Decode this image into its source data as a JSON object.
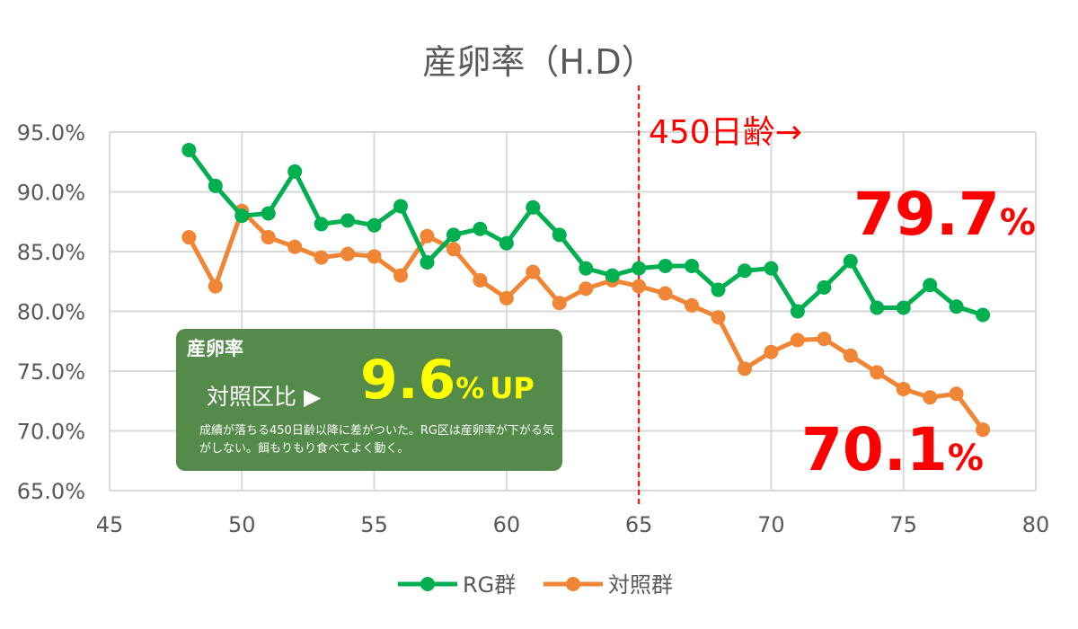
{
  "chart_data": {
    "type": "line",
    "title": "産卵率（H.D）",
    "xlabel": "",
    "ylabel": "",
    "xlim": [
      45,
      80
    ],
    "ylim": [
      65,
      95
    ],
    "x_ticks": [
      "45",
      "50",
      "55",
      "60",
      "65",
      "70",
      "75",
      "80"
    ],
    "y_ticks": [
      "65.0%",
      "70.0%",
      "75.0%",
      "80.0%",
      "85.0%",
      "90.0%",
      "95.0%"
    ],
    "grid": true,
    "legend_position": "bottom",
    "x": [
      48,
      49,
      50,
      51,
      52,
      53,
      54,
      55,
      56,
      57,
      58,
      59,
      60,
      61,
      62,
      63,
      64,
      65,
      66,
      67,
      68,
      69,
      70,
      71,
      72,
      73,
      74,
      75,
      76,
      77,
      78
    ],
    "series": [
      {
        "name": "RG群",
        "color": "#00b050",
        "values": [
          93.5,
          90.5,
          88.0,
          88.2,
          91.7,
          87.3,
          87.6,
          87.2,
          88.8,
          84.1,
          86.4,
          86.9,
          85.7,
          88.7,
          86.4,
          83.6,
          83.0,
          83.6,
          83.8,
          83.8,
          81.8,
          83.4,
          83.6,
          80.0,
          82.0,
          84.2,
          80.3,
          80.3,
          82.2,
          80.4,
          79.7
        ]
      },
      {
        "name": "対照群",
        "color": "#f08536",
        "values": [
          86.2,
          82.1,
          88.4,
          86.2,
          85.4,
          84.5,
          84.8,
          84.6,
          83.0,
          86.3,
          85.2,
          82.6,
          81.1,
          83.3,
          80.7,
          81.9,
          82.6,
          82.1,
          81.5,
          80.5,
          79.5,
          75.2,
          76.6,
          77.6,
          77.7,
          76.3,
          74.9,
          73.5,
          72.8,
          73.1,
          70.1
        ]
      }
    ],
    "vline": {
      "x": 65,
      "color": "#ff0000"
    },
    "annotations": {
      "age_label": "450日齢→",
      "rg_final_num": "79.7",
      "rg_final_unit": "%",
      "ctrl_final_num": "70.1",
      "ctrl_final_unit": "%"
    }
  },
  "callout": {
    "heading": "産卵率",
    "comparison": "対照区比 ▶",
    "value": "9.6",
    "unit": "%",
    "suffix": "UP",
    "note": "成績が落ちる450日齢以降に差がついた。RG区は産卵率が下がる気がしない。餌もりもり食べてよく動く。"
  }
}
